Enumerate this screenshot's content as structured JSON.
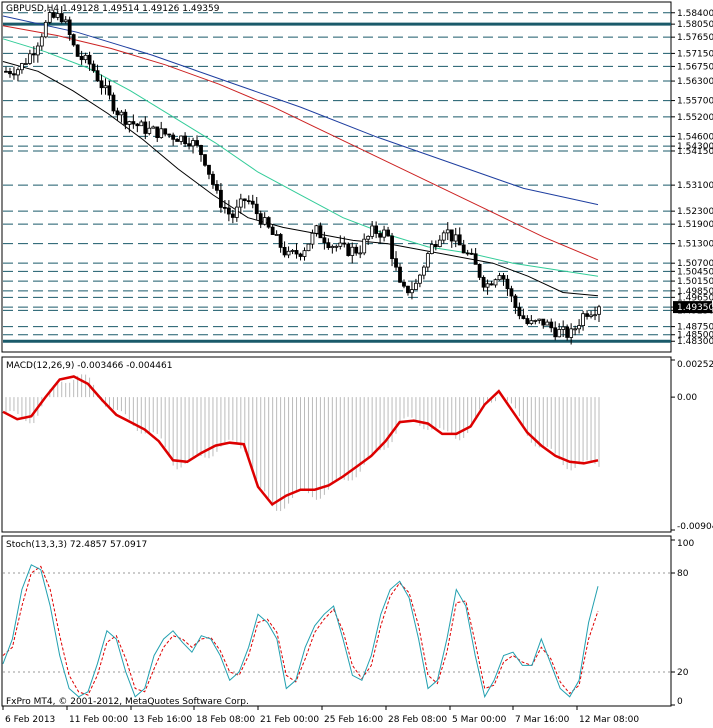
{
  "main": {
    "title": "GBPUSD,H4  1.49128 1.49514 1.49126 1.49359",
    "ylim": [
      1.48,
      1.587
    ],
    "grid_levels": [
      1.584,
      1.5805,
      1.5765,
      1.5715,
      1.5675,
      1.563,
      1.557,
      1.552,
      1.546,
      1.543,
      1.5415,
      1.531,
      1.523,
      1.519,
      1.513,
      1.507,
      1.5045,
      1.5015,
      1.4985,
      1.4965,
      1.4935,
      1.4925,
      1.4875,
      1.485,
      1.483
    ],
    "price_labels": [
      "1.58400",
      "1.58050",
      "1.57650",
      "1.57150",
      "1.56750",
      "1.56300",
      "1.55700",
      "1.55200",
      "1.54600",
      "1.54300",
      "1.54150",
      "1.53100",
      "1.52300",
      "1.51900",
      "1.51300",
      "1.50700",
      "1.50450",
      "1.50150",
      "1.49850",
      "1.49650",
      "1.49350",
      "1.49250",
      "1.48750",
      "1.48500",
      "1.48300"
    ],
    "thick_levels": [
      1.5805,
      1.483
    ],
    "current_price_label": "1.49350",
    "current_price": 1.4935,
    "colors": {
      "ma_black": "#000000",
      "ma_teal": "#33cc99",
      "ma_red": "#cc2222",
      "ma_blue": "#1f3fa0",
      "grid": "#1a5a6a"
    }
  },
  "macd": {
    "title": "MACD(12,26,9) -0.003466 -0.004461",
    "scale_labels": [
      "0.002525",
      "0.00",
      "-0.00904"
    ],
    "top": 0.002525,
    "zero": 0.0,
    "bottom": -0.00904,
    "colors": {
      "hist": "#bbbbbb",
      "signal": "#dd0000"
    }
  },
  "stoch": {
    "title": "Stoch(13,3,3) 72.4857 57.0917",
    "scale_labels": [
      "100",
      "80",
      "20",
      "0"
    ],
    "colors": {
      "main": "#22a0b0",
      "signal": "#dd0000"
    }
  },
  "xaxis": {
    "labels": [
      "6 Feb 2013",
      "11 Feb 00:00",
      "13 Feb 16:00",
      "18 Feb 08:00",
      "21 Feb 00:00",
      "25 Feb 16:00",
      "28 Feb 08:00",
      "5 Mar 00:00",
      "7 Mar 16:00",
      "12 Mar 08:00"
    ]
  },
  "copyright": "FxPro MT4, © 2001-2012, MetaQuotes Software Corp.",
  "chart_data": [
    {
      "type": "candlestick",
      "title": "GBPUSD,H4  1.49128 1.49514 1.49126 1.49359",
      "x": [
        "6 Feb 2013",
        "11 Feb 00:00",
        "13 Feb 16:00",
        "18 Feb 08:00",
        "21 Feb 00:00",
        "25 Feb 16:00",
        "28 Feb 08:00",
        "5 Mar 00:00",
        "7 Mar 16:00",
        "12 Mar 08:00"
      ],
      "close_path": [
        1.566,
        1.567,
        1.573,
        1.582,
        1.583,
        1.571,
        1.568,
        1.56,
        1.553,
        1.55,
        1.548,
        1.547,
        1.546,
        1.545,
        1.54,
        1.527,
        1.521,
        1.527,
        1.521,
        1.515,
        1.509,
        1.511,
        1.517,
        1.513,
        1.511,
        1.511,
        1.517,
        1.516,
        1.498,
        1.5,
        1.511,
        1.518,
        1.513,
        1.508,
        1.5,
        1.505,
        1.494,
        1.488,
        1.489,
        1.486,
        1.485,
        1.492,
        1.4936
      ],
      "last": {
        "open": 1.49128,
        "high": 1.49514,
        "low": 1.49126,
        "close": 1.49359
      },
      "ma_black": [
        1.569,
        1.566,
        1.56,
        1.553,
        1.545,
        1.536,
        1.528,
        1.521,
        1.518,
        1.516,
        1.514,
        1.513,
        1.511,
        1.509,
        1.507,
        1.503,
        1.498,
        1.497
      ],
      "ma_teal": [
        1.576,
        1.572,
        1.567,
        1.56,
        1.552,
        1.544,
        1.535,
        1.528,
        1.521,
        1.516,
        1.512,
        1.51,
        1.507,
        1.505,
        1.503
      ],
      "ma_red": [
        1.58,
        1.577,
        1.573,
        1.568,
        1.562,
        1.555,
        1.547,
        1.539,
        1.531,
        1.523,
        1.515,
        1.508
      ],
      "ma_blue": [
        1.583,
        1.578,
        1.571,
        1.563,
        1.555,
        1.546,
        1.538,
        1.53,
        1.525
      ]
    },
    {
      "type": "line",
      "title": "MACD(12,26,9) -0.003466 -0.004461",
      "ylim": [
        -0.00904,
        0.002525
      ],
      "signal": [
        -0.001,
        -0.0015,
        -0.0013,
        0.0,
        0.0012,
        0.0014,
        0.0009,
        -0.0002,
        -0.0012,
        -0.0017,
        -0.0022,
        -0.003,
        -0.0043,
        -0.0044,
        -0.0038,
        -0.0033,
        -0.0031,
        -0.0032,
        -0.0061,
        -0.0073,
        -0.0067,
        -0.0063,
        -0.0063,
        -0.006,
        -0.0054,
        -0.0047,
        -0.004,
        -0.003,
        -0.0017,
        -0.0016,
        -0.0018,
        -0.0025,
        -0.0025,
        -0.002,
        -0.0005,
        0.0004,
        -0.001,
        -0.0024,
        -0.0033,
        -0.004,
        -0.0044,
        -0.0045,
        -0.0043
      ],
      "histogram_last": -0.003466
    },
    {
      "type": "line",
      "title": "Stoch(13,3,3) 72.4857 57.0917",
      "ylim": [
        0,
        100
      ],
      "main": [
        25,
        40,
        70,
        85,
        82,
        60,
        30,
        10,
        5,
        8,
        25,
        45,
        40,
        20,
        5,
        10,
        30,
        40,
        45,
        38,
        32,
        42,
        40,
        30,
        15,
        20,
        35,
        55,
        50,
        40,
        10,
        15,
        35,
        48,
        55,
        60,
        40,
        18,
        15,
        30,
        55,
        70,
        75,
        65,
        40,
        10,
        15,
        40,
        70,
        60,
        30,
        5,
        15,
        30,
        32,
        24,
        24,
        40,
        25,
        10,
        5,
        15,
        50,
        72
      ],
      "signal": [
        30,
        35,
        60,
        80,
        84,
        70,
        42,
        18,
        8,
        6,
        18,
        38,
        42,
        28,
        10,
        8,
        22,
        35,
        42,
        40,
        35,
        40,
        41,
        33,
        20,
        18,
        30,
        50,
        52,
        44,
        18,
        14,
        28,
        44,
        52,
        58,
        45,
        24,
        16,
        24,
        48,
        66,
        74,
        68,
        48,
        18,
        13,
        32,
        62,
        63,
        38,
        10,
        12,
        26,
        30,
        26,
        24,
        35,
        28,
        14,
        7,
        12,
        40,
        57
      ]
    }
  ]
}
